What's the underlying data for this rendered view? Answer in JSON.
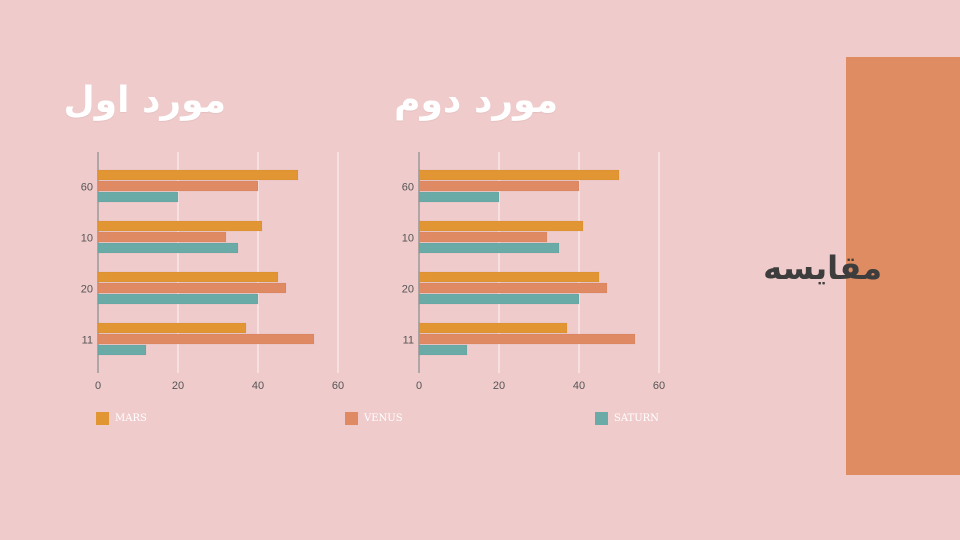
{
  "slide": {
    "heading": "مقایسه",
    "colors": {
      "background": "#f0cbcb",
      "panel": "#df8c63",
      "heading": "#3d3d3d"
    }
  },
  "legend": [
    {
      "label": "MARS",
      "color": "#e29533"
    },
    {
      "label": "VENUS",
      "color": "#e08a63"
    },
    {
      "label": "SATURN",
      "color": "#6aaba8"
    }
  ],
  "chart_data": [
    {
      "type": "bar",
      "orientation": "horizontal",
      "title": "مورد اول",
      "categories": [
        "60",
        "10",
        "20",
        "11"
      ],
      "series": [
        {
          "name": "MARS",
          "color": "#e29533",
          "values": [
            50,
            41,
            45,
            37
          ]
        },
        {
          "name": "VENUS",
          "color": "#e08a63",
          "values": [
            40,
            32,
            47,
            54
          ]
        },
        {
          "name": "SATURN",
          "color": "#6aaba8",
          "values": [
            20,
            35,
            40,
            12
          ]
        }
      ],
      "xlim": [
        0,
        60
      ],
      "xticks": [
        "0",
        "20",
        "40",
        "60"
      ],
      "grid": true,
      "legend": "bottom"
    },
    {
      "type": "bar",
      "orientation": "horizontal",
      "title": "مورد دوم",
      "categories": [
        "60",
        "10",
        "20",
        "11"
      ],
      "series": [
        {
          "name": "MARS",
          "color": "#e29533",
          "values": [
            50,
            41,
            45,
            37
          ]
        },
        {
          "name": "VENUS",
          "color": "#e08a63",
          "values": [
            40,
            32,
            47,
            54
          ]
        },
        {
          "name": "SATURN",
          "color": "#6aaba8",
          "values": [
            20,
            35,
            40,
            12
          ]
        }
      ],
      "xlim": [
        0,
        60
      ],
      "xticks": [
        "0",
        "20",
        "40",
        "60"
      ],
      "grid": true,
      "legend": "bottom"
    }
  ]
}
